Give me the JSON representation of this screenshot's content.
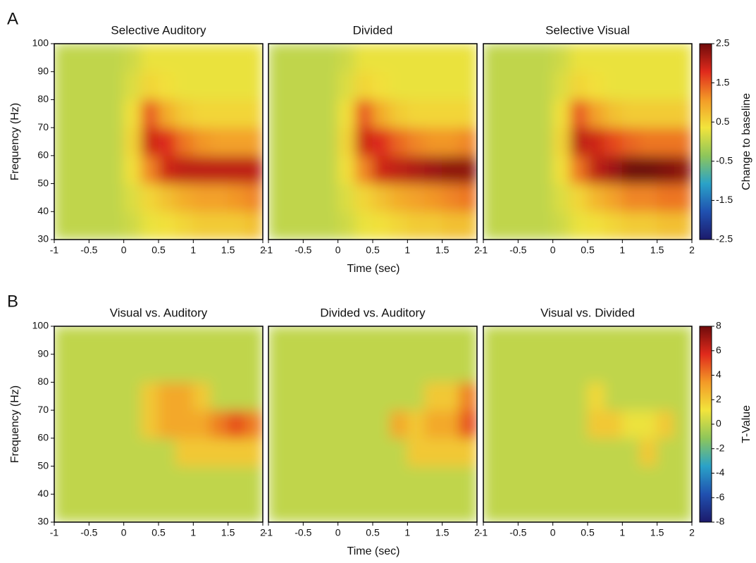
{
  "chart_data": [
    {
      "type": "heatmap",
      "title": "Selective Auditory",
      "row": 0,
      "xbins": [
        -1,
        -0.75,
        -0.5,
        -0.25,
        0,
        0.25,
        0.5,
        0.75,
        1,
        1.25,
        1.5,
        1.75,
        2
      ],
      "ybins": [
        30,
        40,
        50,
        60,
        70,
        80,
        90,
        100
      ],
      "values": [
        [
          0,
          0,
          0,
          0,
          0.1,
          0.3,
          0.4,
          0.5,
          0.6,
          0.6,
          0.6,
          0.7
        ],
        [
          0,
          0,
          0,
          0,
          0.2,
          0.5,
          0.7,
          0.9,
          1.0,
          1.0,
          1.1,
          1.2
        ],
        [
          0,
          0,
          0,
          0,
          0.4,
          1.2,
          1.9,
          2.0,
          2.0,
          2.0,
          2.0,
          2.0
        ],
        [
          0,
          0,
          0,
          0,
          0.5,
          1.9,
          1.8,
          1.3,
          1.1,
          1.0,
          1.0,
          1.0
        ],
        [
          0,
          0,
          0,
          0,
          0.4,
          1.5,
          0.9,
          0.6,
          0.5,
          0.5,
          0.5,
          0.5
        ],
        [
          0,
          0,
          0,
          0,
          0.2,
          0.5,
          0.4,
          0.3,
          0.3,
          0.3,
          0.3,
          0.3
        ],
        [
          0,
          0,
          0,
          0,
          0.1,
          0.3,
          0.3,
          0.3,
          0.3,
          0.3,
          0.3,
          0.3
        ]
      ],
      "xlim": [
        -1,
        2
      ],
      "xticks": [
        -1,
        -0.5,
        0,
        0.5,
        1,
        1.5,
        2
      ],
      "ylim": [
        30,
        100
      ],
      "yticks": [
        30,
        40,
        50,
        60,
        70,
        80,
        90,
        100
      ]
    },
    {
      "type": "heatmap",
      "title": "Divided",
      "row": 0,
      "xbins": [
        -1,
        -0.75,
        -0.5,
        -0.25,
        0,
        0.25,
        0.5,
        0.75,
        1,
        1.25,
        1.5,
        1.75,
        2
      ],
      "ybins": [
        30,
        40,
        50,
        60,
        70,
        80,
        90,
        100
      ],
      "values": [
        [
          0,
          0,
          0,
          0,
          0.1,
          0.3,
          0.4,
          0.5,
          0.6,
          0.6,
          0.7,
          0.7
        ],
        [
          0,
          0,
          0,
          0,
          0.2,
          0.5,
          0.7,
          0.9,
          1.0,
          1.1,
          1.2,
          1.3
        ],
        [
          0,
          0,
          0,
          0,
          0.4,
          1.2,
          1.9,
          2.0,
          2.1,
          2.2,
          2.3,
          2.3
        ],
        [
          0,
          0,
          0,
          0,
          0.5,
          1.9,
          1.8,
          1.4,
          1.2,
          1.1,
          1.1,
          1.2
        ],
        [
          0,
          0,
          0,
          0,
          0.4,
          1.5,
          0.9,
          0.6,
          0.5,
          0.5,
          0.5,
          0.5
        ],
        [
          0,
          0,
          0,
          0,
          0.2,
          0.5,
          0.4,
          0.3,
          0.3,
          0.3,
          0.3,
          0.3
        ],
        [
          0,
          0,
          0,
          0,
          0.1,
          0.3,
          0.3,
          0.3,
          0.3,
          0.3,
          0.3,
          0.3
        ]
      ],
      "xlim": [
        -1,
        2
      ],
      "xticks": [
        -1,
        -0.5,
        0,
        0.5,
        1,
        1.5,
        2
      ]
    },
    {
      "type": "heatmap",
      "title": "Selective Visual",
      "row": 0,
      "xbins": [
        -1,
        -0.75,
        -0.5,
        -0.25,
        0,
        0.25,
        0.5,
        0.75,
        1,
        1.25,
        1.5,
        1.75,
        2
      ],
      "ybins": [
        30,
        40,
        50,
        60,
        70,
        80,
        90,
        100
      ],
      "values": [
        [
          0,
          0,
          0,
          0,
          0.1,
          0.3,
          0.4,
          0.5,
          0.6,
          0.6,
          0.7,
          0.7
        ],
        [
          0,
          0,
          0,
          0,
          0.2,
          0.5,
          0.8,
          1.0,
          1.2,
          1.2,
          1.3,
          1.3
        ],
        [
          0,
          0,
          0,
          0,
          0.4,
          1.3,
          2.0,
          2.2,
          2.5,
          2.5,
          2.4,
          2.3
        ],
        [
          0,
          0,
          0,
          0,
          0.5,
          2.0,
          1.9,
          1.6,
          1.4,
          1.3,
          1.3,
          1.3
        ],
        [
          0,
          0,
          0,
          0,
          0.4,
          1.5,
          1.0,
          0.7,
          0.6,
          0.6,
          0.6,
          0.6
        ],
        [
          0,
          0,
          0,
          0,
          0.2,
          0.5,
          0.4,
          0.3,
          0.3,
          0.3,
          0.3,
          0.3
        ],
        [
          0,
          0,
          0,
          0,
          0.1,
          0.3,
          0.3,
          0.3,
          0.3,
          0.3,
          0.3,
          0.3
        ]
      ],
      "xlim": [
        -1,
        2
      ],
      "xticks": [
        -1,
        -0.5,
        0,
        0.5,
        1,
        1.5,
        2
      ]
    },
    {
      "type": "heatmap",
      "title": "Visual vs. Auditory",
      "row": 1,
      "xbins": [
        -1,
        -0.75,
        -0.5,
        -0.25,
        0,
        0.25,
        0.5,
        0.75,
        1,
        1.25,
        1.5,
        1.75,
        2
      ],
      "ybins": [
        30,
        40,
        50,
        60,
        70,
        80,
        90,
        100
      ],
      "values": [
        [
          0,
          0,
          0,
          0,
          0,
          0,
          0,
          0,
          0,
          0,
          0,
          0
        ],
        [
          0,
          0,
          0,
          0,
          0,
          0,
          0,
          0,
          0,
          0,
          0,
          0
        ],
        [
          0,
          0,
          0,
          0,
          0,
          0,
          0,
          2,
          2,
          2,
          2,
          2
        ],
        [
          0,
          0,
          0,
          0,
          0,
          2,
          3,
          3,
          3,
          4,
          5,
          4
        ],
        [
          0,
          0,
          0,
          0,
          0,
          2,
          3,
          3,
          2,
          0,
          0,
          0
        ],
        [
          0,
          0,
          0,
          0,
          0,
          0,
          0,
          0,
          0,
          0,
          0,
          0
        ],
        [
          0,
          0,
          0,
          0,
          0,
          0,
          0,
          0,
          0,
          0,
          0,
          0
        ]
      ],
      "xlim": [
        -1,
        2
      ],
      "xticks": [
        -1,
        -0.5,
        0,
        0.5,
        1,
        1.5,
        2
      ],
      "ylim": [
        30,
        100
      ],
      "yticks": [
        30,
        40,
        50,
        60,
        70,
        80,
        90,
        100
      ]
    },
    {
      "type": "heatmap",
      "title": "Divided vs. Auditory",
      "row": 1,
      "xbins": [
        -1,
        -0.75,
        -0.5,
        -0.25,
        0,
        0.25,
        0.5,
        0.75,
        1,
        1.25,
        1.5,
        1.75,
        2
      ],
      "ybins": [
        30,
        40,
        50,
        60,
        70,
        80,
        90,
        100
      ],
      "values": [
        [
          0,
          0,
          0,
          0,
          0,
          0,
          0,
          0,
          0,
          0,
          0,
          0
        ],
        [
          0,
          0,
          0,
          0,
          0,
          0,
          0,
          0,
          0,
          0,
          0,
          0
        ],
        [
          0,
          0,
          0,
          0,
          0,
          0,
          0,
          0,
          2,
          2,
          2,
          2
        ],
        [
          0,
          0,
          0,
          0,
          0,
          0,
          0,
          3,
          2,
          3,
          3,
          5
        ],
        [
          0,
          0,
          0,
          0,
          0,
          0,
          0,
          0,
          0,
          2,
          2,
          4
        ],
        [
          0,
          0,
          0,
          0,
          0,
          0,
          0,
          0,
          0,
          0,
          0,
          0
        ],
        [
          0,
          0,
          0,
          0,
          0,
          0,
          0,
          0,
          0,
          0,
          0,
          0
        ]
      ],
      "xlim": [
        -1,
        2
      ],
      "xticks": [
        -1,
        -0.5,
        0,
        0.5,
        1,
        1.5,
        2
      ]
    },
    {
      "type": "heatmap",
      "title": "Visual vs. Divided",
      "row": 1,
      "xbins": [
        -1,
        -0.75,
        -0.5,
        -0.25,
        0,
        0.25,
        0.5,
        0.75,
        1,
        1.25,
        1.5,
        1.75,
        2
      ],
      "ybins": [
        30,
        40,
        50,
        60,
        70,
        80,
        90,
        100
      ],
      "values": [
        [
          0,
          0,
          0,
          0,
          0,
          0,
          0,
          0,
          0,
          0,
          0,
          0
        ],
        [
          0,
          0,
          0,
          0,
          0,
          0,
          0,
          0,
          0,
          0,
          0,
          0
        ],
        [
          0,
          0,
          0,
          0,
          0,
          0,
          0,
          0,
          0,
          2,
          0,
          0
        ],
        [
          0,
          0,
          0,
          0,
          0,
          0,
          2,
          2,
          1,
          1,
          2,
          0
        ],
        [
          0,
          0,
          0,
          0,
          0,
          0,
          1.5,
          0,
          0,
          0,
          0,
          0
        ],
        [
          0,
          0,
          0,
          0,
          0,
          0,
          0,
          0,
          0,
          0,
          0,
          0
        ],
        [
          0,
          0,
          0,
          0,
          0,
          0,
          0,
          0,
          0,
          0,
          0,
          0
        ]
      ],
      "xlim": [
        -1,
        2
      ],
      "xticks": [
        -1,
        -0.5,
        0,
        0.5,
        1,
        1.5,
        2
      ]
    }
  ],
  "figure": {
    "rows": [
      {
        "label": "A",
        "xlabel": "Time (sec)",
        "ylabel": "Frequency (Hz)",
        "colorbar": {
          "label": "Change to baseline",
          "clim": [
            -2.5,
            2.5
          ],
          "cticks": [
            2.5,
            1.5,
            0.5,
            -0.5,
            -1.5,
            -2.5
          ],
          "colormap": [
            "#1c1a6b",
            "#2051b0",
            "#2aa2c8",
            "#8ec65a",
            "#f2e43c",
            "#f39a27",
            "#e02a1c",
            "#6f0b0b"
          ]
        }
      },
      {
        "label": "B",
        "xlabel": "Time (sec)",
        "ylabel": "Frequency (Hz)",
        "colorbar": {
          "label": "T-Value",
          "clim": [
            -8,
            8
          ],
          "cticks": [
            8,
            6,
            4,
            2,
            0,
            -2,
            -4,
            -6,
            -8
          ],
          "colormap": [
            "#1c1a6b",
            "#2051b0",
            "#2aa2c8",
            "#8ec65a",
            "#f2e43c",
            "#f39a27",
            "#e02a1c",
            "#6f0b0b"
          ]
        }
      }
    ]
  }
}
